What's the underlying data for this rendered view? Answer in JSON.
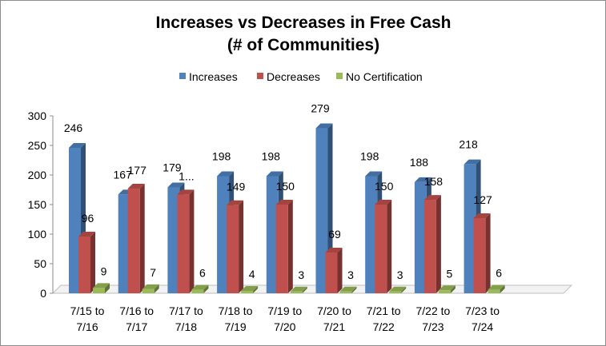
{
  "chart_data": {
    "type": "bar",
    "title": [
      "Increases vs Decreases in Free Cash",
      "(# of Communities)"
    ],
    "categories": [
      [
        "7/15 to",
        "7/16"
      ],
      [
        "7/16 to",
        "7/17"
      ],
      [
        "7/17 to",
        "7/18"
      ],
      [
        "7/18 to",
        "7/19"
      ],
      [
        "7/19 to",
        "7/20"
      ],
      [
        "7/20 to",
        "7/21"
      ],
      [
        "7/21 to",
        "7/22"
      ],
      [
        "7/22 to",
        "7/23"
      ],
      [
        "7/23 to",
        "7/24"
      ]
    ],
    "series": [
      {
        "name": "Increases",
        "color": "#4F81BD",
        "values": [
          246,
          167,
          179,
          198,
          198,
          279,
          198,
          188,
          218
        ],
        "labels": [
          "246",
          "167",
          "179",
          "198",
          "198",
          "279",
          "198",
          "188",
          "218"
        ]
      },
      {
        "name": "Decreases",
        "color": "#C0504D",
        "values": [
          96,
          177,
          167,
          149,
          150,
          69,
          150,
          158,
          127
        ],
        "labels": [
          "96",
          "177",
          "1...",
          "149",
          "150",
          "69",
          "150",
          "158",
          "127"
        ]
      },
      {
        "name": "No Certification",
        "color": "#9BBB59",
        "values": [
          9,
          7,
          6,
          4,
          3,
          3,
          3,
          5,
          6
        ],
        "labels": [
          "9",
          "7",
          "6",
          "4",
          "3",
          "3",
          "3",
          "5",
          "6"
        ]
      }
    ],
    "ylim": [
      0,
      300
    ],
    "yticks": [
      0,
      50,
      100,
      150,
      200,
      250,
      300
    ],
    "grid": false,
    "legend": "top-center",
    "style": "3d-clustered-column"
  }
}
